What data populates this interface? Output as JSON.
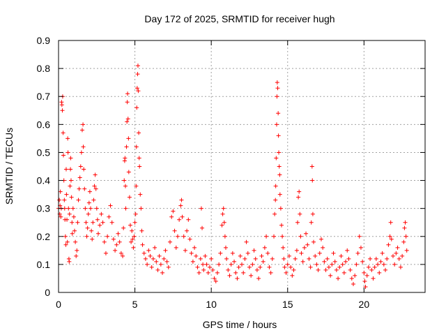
{
  "chart_data": {
    "type": "scatter",
    "title": "Day 172 of 2025, SRMTID for receiver hugh",
    "xlabel": "GPS time / hours",
    "ylabel": "SRMTID / TECUs",
    "xlim": [
      0,
      24
    ],
    "ylim": [
      0,
      0.9
    ],
    "xticks": [
      0,
      5,
      10,
      15,
      20
    ],
    "yticks": [
      0,
      0.1,
      0.2,
      0.3,
      0.4,
      0.5,
      0.6,
      0.7,
      0.8,
      0.9
    ],
    "grid": true,
    "marker": "+",
    "color": "#ff0000",
    "series": [
      {
        "name": "SRMTID",
        "points": [
          [
            0.0,
            0.3
          ],
          [
            0.05,
            0.33
          ],
          [
            0.08,
            0.28
          ],
          [
            0.1,
            0.31
          ],
          [
            0.12,
            0.36
          ],
          [
            0.15,
            0.27
          ],
          [
            0.18,
            0.3
          ],
          [
            0.2,
            0.68
          ],
          [
            0.22,
            0.67
          ],
          [
            0.25,
            0.65
          ],
          [
            0.27,
            0.7
          ],
          [
            0.3,
            0.57
          ],
          [
            0.32,
            0.49
          ],
          [
            0.35,
            0.4
          ],
          [
            0.38,
            0.33
          ],
          [
            0.4,
            0.3
          ],
          [
            0.42,
            0.26
          ],
          [
            0.45,
            0.2
          ],
          [
            0.48,
            0.17
          ],
          [
            0.5,
            0.44
          ],
          [
            0.52,
            0.35
          ],
          [
            0.55,
            0.26
          ],
          [
            0.58,
            0.18
          ],
          [
            0.6,
            0.55
          ],
          [
            0.62,
            0.5
          ],
          [
            0.65,
            0.3
          ],
          [
            0.68,
            0.12
          ],
          [
            0.7,
            0.11
          ],
          [
            0.72,
            0.28
          ],
          [
            0.75,
            0.38
          ],
          [
            0.78,
            0.44
          ],
          [
            0.8,
            0.48
          ],
          [
            0.82,
            0.4
          ],
          [
            0.85,
            0.34
          ],
          [
            0.88,
            0.25
          ],
          [
            0.9,
            0.21
          ],
          [
            0.95,
            0.3
          ],
          [
            1.0,
            0.27
          ],
          [
            1.05,
            0.22
          ],
          [
            1.1,
            0.18
          ],
          [
            1.15,
            0.13
          ],
          [
            1.2,
            0.15
          ],
          [
            1.25,
            0.25
          ],
          [
            1.3,
            0.33
          ],
          [
            1.35,
            0.37
          ],
          [
            1.4,
            0.41
          ],
          [
            1.45,
            0.45
          ],
          [
            1.5,
            0.5
          ],
          [
            1.55,
            0.58
          ],
          [
            1.6,
            0.6
          ],
          [
            1.62,
            0.52
          ],
          [
            1.65,
            0.44
          ],
          [
            1.7,
            0.37
          ],
          [
            1.75,
            0.3
          ],
          [
            1.8,
            0.25
          ],
          [
            1.85,
            0.2
          ],
          [
            1.9,
            0.23
          ],
          [
            1.95,
            0.28
          ],
          [
            2.0,
            0.32
          ],
          [
            2.05,
            0.36
          ],
          [
            2.1,
            0.3
          ],
          [
            2.15,
            0.22
          ],
          [
            2.2,
            0.19
          ],
          [
            2.25,
            0.25
          ],
          [
            2.3,
            0.33
          ],
          [
            2.35,
            0.38
          ],
          [
            2.4,
            0.42
          ],
          [
            2.45,
            0.37
          ],
          [
            2.5,
            0.3
          ],
          [
            2.55,
            0.26
          ],
          [
            2.6,
            0.21
          ],
          [
            2.7,
            0.24
          ],
          [
            2.8,
            0.28
          ],
          [
            2.9,
            0.25
          ],
          [
            3.0,
            0.18
          ],
          [
            3.1,
            0.14
          ],
          [
            3.2,
            0.2
          ],
          [
            3.3,
            0.27
          ],
          [
            3.4,
            0.31
          ],
          [
            3.5,
            0.25
          ],
          [
            3.6,
            0.19
          ],
          [
            3.7,
            0.15
          ],
          [
            3.8,
            0.17
          ],
          [
            3.9,
            0.21
          ],
          [
            4.0,
            0.18
          ],
          [
            4.1,
            0.14
          ],
          [
            4.2,
            0.13
          ],
          [
            4.25,
            0.23
          ],
          [
            4.3,
            0.4
          ],
          [
            4.33,
            0.47
          ],
          [
            4.35,
            0.48
          ],
          [
            4.38,
            0.38
          ],
          [
            4.4,
            0.3
          ],
          [
            4.45,
            0.52
          ],
          [
            4.48,
            0.61
          ],
          [
            4.5,
            0.68
          ],
          [
            4.52,
            0.71
          ],
          [
            4.55,
            0.62
          ],
          [
            4.58,
            0.55
          ],
          [
            4.6,
            0.43
          ],
          [
            4.65,
            0.34
          ],
          [
            4.7,
            0.24
          ],
          [
            4.75,
            0.18
          ],
          [
            4.8,
            0.22
          ],
          [
            4.85,
            0.19
          ],
          [
            4.9,
            0.16
          ],
          [
            4.95,
            0.2
          ],
          [
            5.0,
            0.25
          ],
          [
            5.05,
            0.28
          ],
          [
            5.08,
            0.38
          ],
          [
            5.1,
            0.52
          ],
          [
            5.12,
            0.66
          ],
          [
            5.15,
            0.73
          ],
          [
            5.18,
            0.78
          ],
          [
            5.2,
            0.81
          ],
          [
            5.22,
            0.72
          ],
          [
            5.25,
            0.57
          ],
          [
            5.28,
            0.48
          ],
          [
            5.3,
            0.45
          ],
          [
            5.35,
            0.35
          ],
          [
            5.4,
            0.3
          ],
          [
            5.45,
            0.22
          ],
          [
            5.5,
            0.17
          ],
          [
            5.6,
            0.14
          ],
          [
            5.7,
            0.12
          ],
          [
            5.8,
            0.1
          ],
          [
            5.9,
            0.15
          ],
          [
            6.0,
            0.13
          ],
          [
            6.1,
            0.09
          ],
          [
            6.2,
            0.12
          ],
          [
            6.3,
            0.16
          ],
          [
            6.4,
            0.11
          ],
          [
            6.5,
            0.08
          ],
          [
            6.6,
            0.13
          ],
          [
            6.7,
            0.1
          ],
          [
            6.8,
            0.07
          ],
          [
            6.9,
            0.12
          ],
          [
            7.0,
            0.15
          ],
          [
            7.1,
            0.11
          ],
          [
            7.2,
            0.09
          ],
          [
            7.3,
            0.18
          ],
          [
            7.4,
            0.27
          ],
          [
            7.5,
            0.29
          ],
          [
            7.6,
            0.22
          ],
          [
            7.7,
            0.16
          ],
          [
            7.8,
            0.2
          ],
          [
            7.9,
            0.26
          ],
          [
            8.0,
            0.31
          ],
          [
            8.05,
            0.33
          ],
          [
            8.1,
            0.27
          ],
          [
            8.2,
            0.2
          ],
          [
            8.3,
            0.15
          ],
          [
            8.4,
            0.22
          ],
          [
            8.5,
            0.26
          ],
          [
            8.6,
            0.19
          ],
          [
            8.7,
            0.14
          ],
          [
            8.8,
            0.11
          ],
          [
            8.9,
            0.16
          ],
          [
            9.0,
            0.13
          ],
          [
            9.1,
            0.09
          ],
          [
            9.2,
            0.07
          ],
          [
            9.3,
            0.12
          ],
          [
            9.35,
            0.3
          ],
          [
            9.4,
            0.23
          ],
          [
            9.45,
            0.1
          ],
          [
            9.5,
            0.08
          ],
          [
            9.6,
            0.13
          ],
          [
            9.7,
            0.1
          ],
          [
            9.8,
            0.07
          ],
          [
            9.9,
            0.09
          ],
          [
            10.0,
            0.12
          ],
          [
            10.1,
            0.08
          ],
          [
            10.2,
            0.05
          ],
          [
            10.3,
            0.04
          ],
          [
            10.4,
            0.07
          ],
          [
            10.5,
            0.1
          ],
          [
            10.6,
            0.14
          ],
          [
            10.7,
            0.24
          ],
          [
            10.75,
            0.28
          ],
          [
            10.8,
            0.3
          ],
          [
            10.85,
            0.25
          ],
          [
            10.9,
            0.2
          ],
          [
            10.95,
            0.16
          ],
          [
            11.0,
            0.12
          ],
          [
            11.1,
            0.08
          ],
          [
            11.2,
            0.06
          ],
          [
            11.3,
            0.1
          ],
          [
            11.4,
            0.14
          ],
          [
            11.5,
            0.11
          ],
          [
            11.6,
            0.07
          ],
          [
            11.7,
            0.05
          ],
          [
            11.8,
            0.09
          ],
          [
            11.9,
            0.13
          ],
          [
            12.0,
            0.1
          ],
          [
            12.1,
            0.07
          ],
          [
            12.2,
            0.12
          ],
          [
            12.3,
            0.18
          ],
          [
            12.4,
            0.14
          ],
          [
            12.5,
            0.09
          ],
          [
            12.6,
            0.06
          ],
          [
            12.7,
            0.1
          ],
          [
            12.8,
            0.15
          ],
          [
            12.9,
            0.12
          ],
          [
            13.0,
            0.08
          ],
          [
            13.1,
            0.05
          ],
          [
            13.2,
            0.09
          ],
          [
            13.3,
            0.13
          ],
          [
            13.4,
            0.11
          ],
          [
            13.5,
            0.16
          ],
          [
            13.6,
            0.2
          ],
          [
            13.7,
            0.14
          ],
          [
            13.8,
            0.09
          ],
          [
            13.9,
            0.07
          ],
          [
            14.0,
            0.12
          ],
          [
            14.1,
            0.2
          ],
          [
            14.15,
            0.28
          ],
          [
            14.2,
            0.33
          ],
          [
            14.22,
            0.38
          ],
          [
            14.25,
            0.48
          ],
          [
            14.28,
            0.6
          ],
          [
            14.3,
            0.7
          ],
          [
            14.32,
            0.75
          ],
          [
            14.35,
            0.73
          ],
          [
            14.38,
            0.64
          ],
          [
            14.4,
            0.56
          ],
          [
            14.42,
            0.5
          ],
          [
            14.45,
            0.45
          ],
          [
            14.48,
            0.42
          ],
          [
            14.5,
            0.35
          ],
          [
            14.55,
            0.3
          ],
          [
            14.6,
            0.24
          ],
          [
            14.65,
            0.2
          ],
          [
            14.7,
            0.16
          ],
          [
            14.75,
            0.12
          ],
          [
            14.8,
            0.09
          ],
          [
            14.9,
            0.07
          ],
          [
            15.0,
            0.1
          ],
          [
            15.1,
            0.13
          ],
          [
            15.2,
            0.09
          ],
          [
            15.3,
            0.06
          ],
          [
            15.4,
            0.08
          ],
          [
            15.5,
            0.12
          ],
          [
            15.6,
            0.15
          ],
          [
            15.65,
            0.25
          ],
          [
            15.7,
            0.34
          ],
          [
            15.75,
            0.36
          ],
          [
            15.8,
            0.28
          ],
          [
            15.85,
            0.2
          ],
          [
            15.9,
            0.14
          ],
          [
            16.0,
            0.11
          ],
          [
            16.1,
            0.16
          ],
          [
            16.2,
            0.21
          ],
          [
            16.3,
            0.17
          ],
          [
            16.4,
            0.12
          ],
          [
            16.5,
            0.09
          ],
          [
            16.55,
            0.25
          ],
          [
            16.6,
            0.45
          ],
          [
            16.62,
            0.4
          ],
          [
            16.65,
            0.28
          ],
          [
            16.7,
            0.18
          ],
          [
            16.8,
            0.13
          ],
          [
            16.9,
            0.1
          ],
          [
            17.0,
            0.08
          ],
          [
            17.1,
            0.14
          ],
          [
            17.2,
            0.19
          ],
          [
            17.3,
            0.16
          ],
          [
            17.4,
            0.11
          ],
          [
            17.5,
            0.08
          ],
          [
            17.6,
            0.12
          ],
          [
            17.7,
            0.09
          ],
          [
            17.8,
            0.06
          ],
          [
            17.9,
            0.1
          ],
          [
            18.0,
            0.14
          ],
          [
            18.1,
            0.11
          ],
          [
            18.2,
            0.08
          ],
          [
            18.3,
            0.05
          ],
          [
            18.4,
            0.09
          ],
          [
            18.5,
            0.13
          ],
          [
            18.6,
            0.1
          ],
          [
            18.7,
            0.07
          ],
          [
            18.8,
            0.11
          ],
          [
            18.9,
            0.15
          ],
          [
            19.0,
            0.12
          ],
          [
            19.1,
            0.08
          ],
          [
            19.2,
            0.05
          ],
          [
            19.3,
            0.03
          ],
          [
            19.4,
            0.06
          ],
          [
            19.5,
            0.1
          ],
          [
            19.6,
            0.14
          ],
          [
            19.7,
            0.2
          ],
          [
            19.8,
            0.16
          ],
          [
            19.9,
            0.11
          ],
          [
            20.0,
            0.07
          ],
          [
            20.05,
            0.04
          ],
          [
            20.1,
            0.02
          ],
          [
            20.2,
            0.06
          ],
          [
            20.3,
            0.09
          ],
          [
            20.4,
            0.12
          ],
          [
            20.5,
            0.08
          ],
          [
            20.6,
            0.05
          ],
          [
            20.7,
            0.09
          ],
          [
            20.8,
            0.12
          ],
          [
            20.9,
            0.1
          ],
          [
            21.0,
            0.07
          ],
          [
            21.1,
            0.11
          ],
          [
            21.2,
            0.14
          ],
          [
            21.3,
            0.1
          ],
          [
            21.4,
            0.08
          ],
          [
            21.5,
            0.12
          ],
          [
            21.6,
            0.17
          ],
          [
            21.7,
            0.2
          ],
          [
            21.75,
            0.25
          ],
          [
            21.8,
            0.19
          ],
          [
            21.9,
            0.13
          ],
          [
            22.0,
            0.1
          ],
          [
            22.1,
            0.14
          ],
          [
            22.2,
            0.16
          ],
          [
            22.3,
            0.12
          ],
          [
            22.4,
            0.09
          ],
          [
            22.5,
            0.13
          ],
          [
            22.6,
            0.18
          ],
          [
            22.65,
            0.23
          ],
          [
            22.7,
            0.25
          ],
          [
            22.75,
            0.2
          ],
          [
            22.8,
            0.15
          ]
        ]
      }
    ]
  }
}
